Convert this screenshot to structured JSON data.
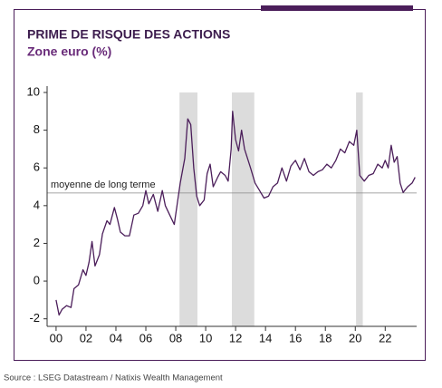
{
  "chart_data": {
    "type": "line",
    "title": "PRIME DE RISQUE DES ACTIONS",
    "subtitle": "Zone euro (%)",
    "source": "Source : LSEG Datastream / Natixis Wealth Management",
    "color": "#4b1e5a",
    "x": [
      2000.0,
      2000.2,
      2000.4,
      2000.7,
      2001.0,
      2001.2,
      2001.5,
      2001.8,
      2002.0,
      2002.2,
      2002.4,
      2002.6,
      2002.9,
      2003.1,
      2003.4,
      2003.6,
      2003.9,
      2004.1,
      2004.3,
      2004.6,
      2004.9,
      2005.2,
      2005.5,
      2005.8,
      2006.0,
      2006.2,
      2006.5,
      2006.8,
      2007.1,
      2007.3,
      2007.6,
      2007.9,
      2008.1,
      2008.3,
      2008.6,
      2008.8,
      2009.0,
      2009.2,
      2009.4,
      2009.6,
      2009.9,
      2010.1,
      2010.3,
      2010.5,
      2010.8,
      2011.0,
      2011.3,
      2011.5,
      2011.7,
      2011.8,
      2012.0,
      2012.2,
      2012.4,
      2012.6,
      2012.8,
      2013.0,
      2013.3,
      2013.6,
      2013.9,
      2014.2,
      2014.5,
      2014.8,
      2015.1,
      2015.4,
      2015.7,
      2016.0,
      2016.3,
      2016.6,
      2016.9,
      2017.2,
      2017.5,
      2017.8,
      2018.1,
      2018.4,
      2018.7,
      2019.0,
      2019.3,
      2019.6,
      2019.9,
      2020.1,
      2020.3,
      2020.6,
      2020.9,
      2021.2,
      2021.5,
      2021.8,
      2022.0,
      2022.2,
      2022.4,
      2022.6,
      2022.8,
      2023.0,
      2023.2,
      2023.5,
      2023.8,
      2024.0
    ],
    "values": [
      -1.0,
      -1.8,
      -1.5,
      -1.3,
      -1.4,
      -0.4,
      -0.2,
      0.6,
      0.3,
      1.0,
      2.1,
      0.8,
      1.4,
      2.5,
      3.2,
      3.0,
      3.9,
      3.3,
      2.6,
      2.4,
      2.4,
      3.5,
      3.6,
      4.0,
      4.8,
      4.1,
      4.6,
      3.7,
      4.8,
      4.0,
      3.5,
      3.0,
      4.1,
      5.2,
      6.5,
      8.6,
      8.3,
      6.0,
      4.5,
      4.0,
      4.3,
      5.7,
      6.2,
      5.0,
      5.5,
      5.8,
      5.6,
      5.3,
      7.0,
      9.0,
      7.5,
      6.9,
      8.0,
      7.0,
      6.5,
      6.0,
      5.2,
      4.8,
      4.4,
      4.5,
      5.0,
      5.2,
      6.0,
      5.3,
      6.1,
      6.4,
      5.9,
      6.5,
      5.8,
      5.6,
      5.8,
      5.9,
      6.2,
      6.0,
      6.4,
      7.0,
      6.8,
      7.4,
      7.2,
      8.0,
      5.6,
      5.3,
      5.6,
      5.7,
      6.2,
      6.0,
      6.4,
      6.0,
      7.2,
      6.3,
      6.6,
      5.2,
      4.7,
      5.0,
      5.2,
      5.5
    ],
    "shaded_periods": [
      [
        2008.25,
        2009.45
      ],
      [
        2011.75,
        2013.25
      ],
      [
        2020.05,
        2020.5
      ]
    ],
    "reference_line": {
      "value": 4.67,
      "label": "moyenne de long terme"
    },
    "xlim": [
      1999.4,
      2024.1
    ],
    "ylim": [
      -2.4,
      10
    ],
    "xticks": [
      {
        "value": 2000,
        "label": "00"
      },
      {
        "value": 2002,
        "label": "02"
      },
      {
        "value": 2004,
        "label": "04"
      },
      {
        "value": 2006,
        "label": "06"
      },
      {
        "value": 2008,
        "label": "08"
      },
      {
        "value": 2010,
        "label": "10"
      },
      {
        "value": 2012,
        "label": "12"
      },
      {
        "value": 2014,
        "label": "14"
      },
      {
        "value": 2016,
        "label": "16"
      },
      {
        "value": 2018,
        "label": "18"
      },
      {
        "value": 2020,
        "label": "20"
      },
      {
        "value": 2022,
        "label": "22"
      }
    ],
    "yticks": [
      -2,
      0,
      2,
      4,
      6,
      8,
      10
    ]
  }
}
